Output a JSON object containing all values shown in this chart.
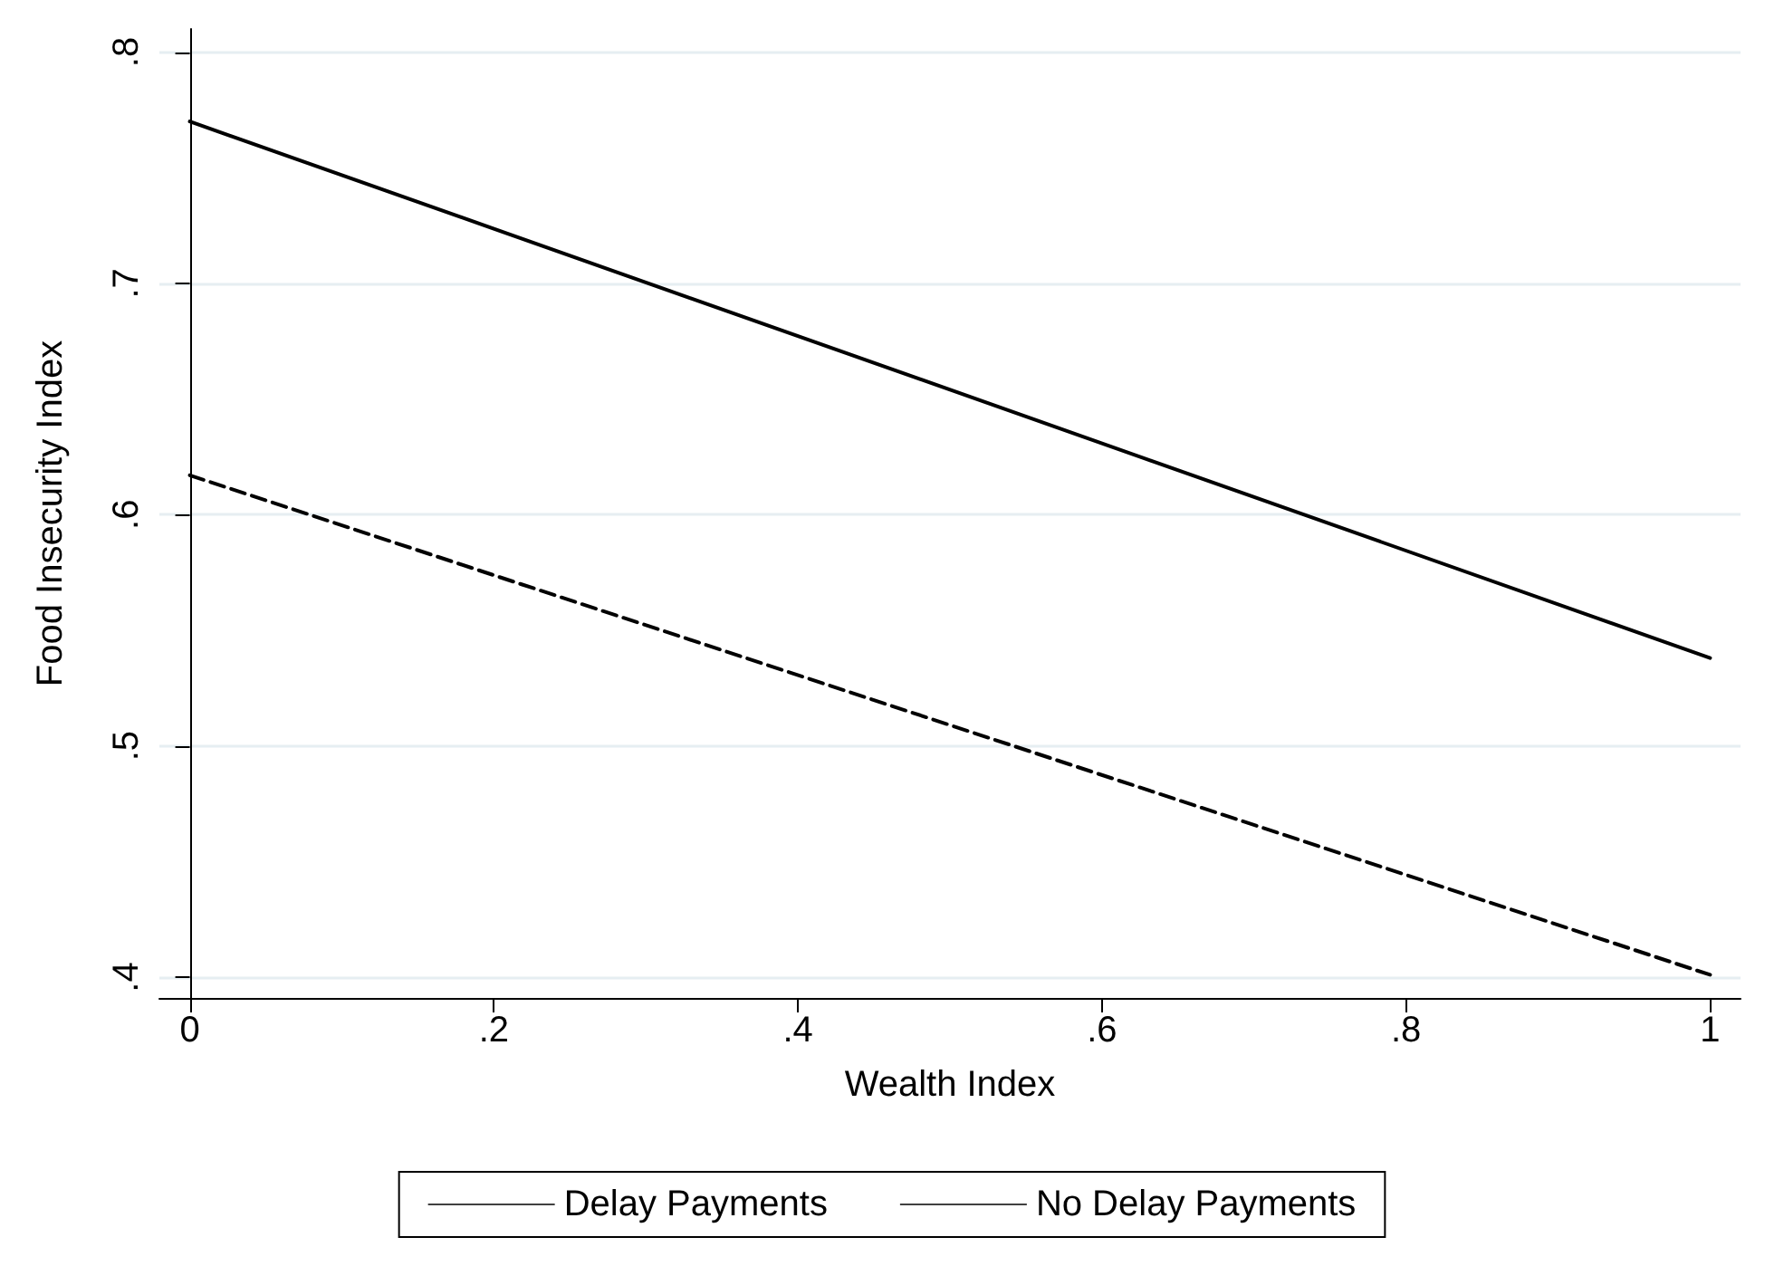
{
  "chart_data": {
    "type": "line",
    "xlabel": "Wealth Index",
    "ylabel": "Food Insecurity Index",
    "x": [
      0,
      1
    ],
    "series": [
      {
        "name": "Delay Payments",
        "color": "#000000",
        "values": [
          0.77,
          0.538
        ],
        "line_style": "solid"
      },
      {
        "name": "No Delay Payments",
        "color": "#000000",
        "values": [
          0.617,
          0.401
        ],
        "line_style": "dashed"
      }
    ],
    "xlim": [
      -0.02,
      1.02
    ],
    "ylim": [
      0.391,
      0.81
    ],
    "xticks": [
      0,
      {
        "value": 0.2,
        "label": ".2"
      },
      {
        "value": 0.4,
        "label": ".4"
      },
      {
        "value": 0.6,
        "label": ".6"
      },
      {
        "value": 0.8,
        "label": ".8"
      },
      1
    ],
    "yticks": [
      {
        "value": 0.4,
        "label": ".4"
      },
      {
        "value": 0.5,
        "label": ".5"
      },
      {
        "value": 0.6,
        "label": ".6"
      },
      {
        "value": 0.7,
        "label": ".7"
      },
      {
        "value": 0.8,
        "label": ".8"
      }
    ],
    "grid": "y",
    "legend": "bottom",
    "marker": "none"
  }
}
